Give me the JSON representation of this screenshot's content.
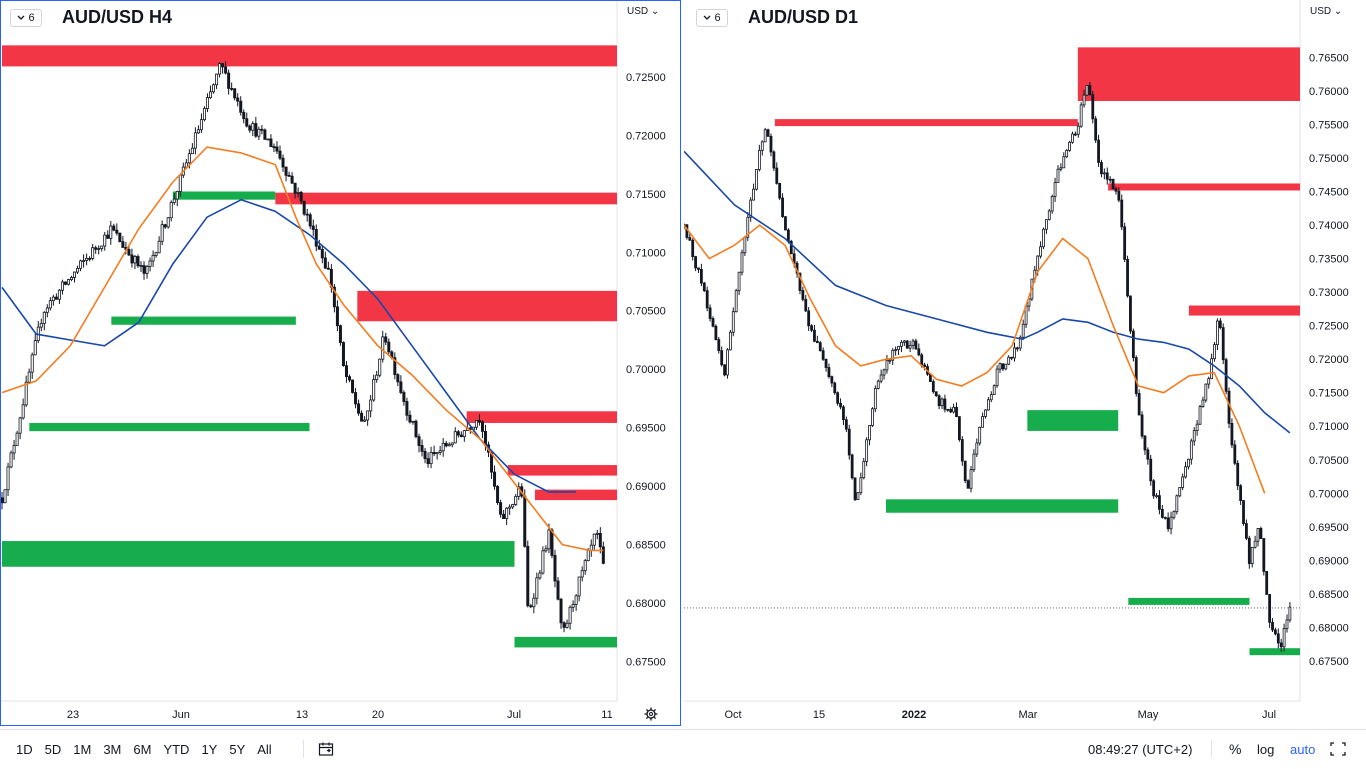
{
  "bottom_bar": {
    "ranges": [
      "1D",
      "5D",
      "1M",
      "3M",
      "6M",
      "YTD",
      "1Y",
      "5Y",
      "All"
    ],
    "clock": "08:49:27 (UTC+2)",
    "percent_label": "%",
    "log_label": "log",
    "auto_label": "auto"
  },
  "colors": {
    "supply_zone": "#f23645",
    "demand_zone": "#17ad4d",
    "ema_fast": "#f57c1f",
    "ema_slow": "#1848a8",
    "active_border": "#2962ff"
  },
  "chart_data": [
    {
      "type": "candlestick",
      "symbol": "AUD/USD H4",
      "interval_label": "6",
      "currency_label": "USD",
      "ylim": [
        0.6735,
        0.7285
      ],
      "y_ticks": [
        "0.72500",
        "0.72000",
        "0.71500",
        "0.71000",
        "0.70500",
        "0.70000",
        "0.69500",
        "0.69000",
        "0.68500",
        "0.68000",
        "0.67500"
      ],
      "x_ticks": [
        "23",
        "Jun",
        "13",
        "20",
        "Jul",
        "11"
      ],
      "price_path": [
        [
          0,
          0.689
        ],
        [
          6,
          0.705
        ],
        [
          16,
          0.712
        ],
        [
          21,
          0.708
        ],
        [
          26,
          0.716
        ],
        [
          32,
          0.726
        ],
        [
          36,
          0.721
        ],
        [
          40,
          0.719
        ],
        [
          44,
          0.714
        ],
        [
          48,
          0.708
        ],
        [
          50,
          0.7
        ],
        [
          53,
          0.695
        ],
        [
          56,
          0.703
        ],
        [
          59,
          0.697
        ],
        [
          62,
          0.692
        ],
        [
          66,
          0.694
        ],
        [
          70,
          0.696
        ],
        [
          73,
          0.687
        ],
        [
          76,
          0.69
        ],
        [
          77,
          0.679
        ],
        [
          80,
          0.686
        ],
        [
          82,
          0.677
        ],
        [
          84,
          0.681
        ],
        [
          87,
          0.686
        ],
        [
          88,
          0.683
        ]
      ],
      "ema_fast": [
        [
          0,
          0.698
        ],
        [
          5,
          0.699
        ],
        [
          10,
          0.702
        ],
        [
          15,
          0.707
        ],
        [
          20,
          0.712
        ],
        [
          25,
          0.716
        ],
        [
          30,
          0.719
        ],
        [
          35,
          0.7185
        ],
        [
          40,
          0.7175
        ],
        [
          43,
          0.713
        ],
        [
          46,
          0.709
        ],
        [
          50,
          0.7055
        ],
        [
          55,
          0.702
        ],
        [
          60,
          0.6995
        ],
        [
          65,
          0.6965
        ],
        [
          70,
          0.694
        ],
        [
          74,
          0.691
        ],
        [
          78,
          0.688
        ],
        [
          82,
          0.685
        ],
        [
          86,
          0.6845
        ],
        [
          88,
          0.6845
        ]
      ],
      "ema_slow": [
        [
          0,
          0.707
        ],
        [
          5,
          0.703
        ],
        [
          10,
          0.7025
        ],
        [
          15,
          0.702
        ],
        [
          20,
          0.704
        ],
        [
          25,
          0.709
        ],
        [
          30,
          0.713
        ],
        [
          35,
          0.7145
        ],
        [
          40,
          0.7135
        ],
        [
          45,
          0.7115
        ],
        [
          50,
          0.709
        ],
        [
          55,
          0.706
        ],
        [
          60,
          0.702
        ],
        [
          65,
          0.698
        ],
        [
          70,
          0.694
        ],
        [
          75,
          0.691
        ],
        [
          80,
          0.6895
        ],
        [
          84,
          0.6895
        ]
      ],
      "zones": [
        {
          "kind": "supply",
          "from": 0,
          "to": 90,
          "high": 0.7277,
          "low": 0.7259
        },
        {
          "kind": "supply",
          "from": 40,
          "to": 90,
          "high": 0.7151,
          "low": 0.7141
        },
        {
          "kind": "supply",
          "from": 52,
          "to": 90,
          "high": 0.7067,
          "low": 0.7041
        },
        {
          "kind": "supply",
          "from": 68,
          "to": 90,
          "high": 0.6964,
          "low": 0.6954
        },
        {
          "kind": "supply",
          "from": 74,
          "to": 90,
          "high": 0.6918,
          "low": 0.6909
        },
        {
          "kind": "supply",
          "from": 78,
          "to": 90,
          "high": 0.6897,
          "low": 0.6888
        },
        {
          "kind": "demand",
          "from": 25,
          "to": 40,
          "high": 0.7152,
          "low": 0.7145
        },
        {
          "kind": "demand",
          "from": 16,
          "to": 43,
          "high": 0.7045,
          "low": 0.7038
        },
        {
          "kind": "demand",
          "from": 4,
          "to": 45,
          "high": 0.6954,
          "low": 0.6947
        },
        {
          "kind": "demand",
          "from": 0,
          "to": 75,
          "high": 0.6853,
          "low": 0.6831
        },
        {
          "kind": "demand",
          "from": 75,
          "to": 90,
          "high": 0.6771,
          "low": 0.6762
        }
      ]
    },
    {
      "type": "candlestick",
      "symbol": "AUD/USD D1",
      "interval_label": "6",
      "currency_label": "USD",
      "ylim": [
        0.6732,
        0.767
      ],
      "y_ticks": [
        "0.76500",
        "0.76000",
        "0.75500",
        "0.75000",
        "0.74500",
        "0.74000",
        "0.73500",
        "0.73000",
        "0.72500",
        "0.72000",
        "0.71500",
        "0.71000",
        "0.70500",
        "0.70000",
        "0.69500",
        "0.69000",
        "0.68500",
        "0.68000",
        "0.67500"
      ],
      "x_ticks": [
        "Oct",
        "15",
        "2022",
        "Mar",
        "May",
        "Jul"
      ],
      "last_price": 0.6829,
      "price_path": [
        [
          0,
          0.74
        ],
        [
          4,
          0.73
        ],
        [
          8,
          0.718
        ],
        [
          12,
          0.738
        ],
        [
          16,
          0.755
        ],
        [
          20,
          0.74
        ],
        [
          24,
          0.727
        ],
        [
          28,
          0.719
        ],
        [
          32,
          0.71
        ],
        [
          34,
          0.698
        ],
        [
          38,
          0.716
        ],
        [
          42,
          0.722
        ],
        [
          46,
          0.722
        ],
        [
          50,
          0.714
        ],
        [
          54,
          0.712
        ],
        [
          56,
          0.7
        ],
        [
          58,
          0.708
        ],
        [
          62,
          0.718
        ],
        [
          66,
          0.722
        ],
        [
          70,
          0.735
        ],
        [
          74,
          0.748
        ],
        [
          78,
          0.755
        ],
        [
          80,
          0.762
        ],
        [
          82,
          0.749
        ],
        [
          86,
          0.745
        ],
        [
          88,
          0.728
        ],
        [
          90,
          0.712
        ],
        [
          93,
          0.7
        ],
        [
          96,
          0.695
        ],
        [
          100,
          0.706
        ],
        [
          104,
          0.718
        ],
        [
          106,
          0.727
        ],
        [
          108,
          0.71
        ],
        [
          110,
          0.7
        ],
        [
          112,
          0.69
        ],
        [
          114,
          0.695
        ],
        [
          116,
          0.68
        ],
        [
          118,
          0.677
        ],
        [
          120,
          0.683
        ]
      ],
      "ema_fast": [
        [
          0,
          0.74
        ],
        [
          5,
          0.735
        ],
        [
          10,
          0.737
        ],
        [
          15,
          0.74
        ],
        [
          20,
          0.737
        ],
        [
          25,
          0.729
        ],
        [
          30,
          0.722
        ],
        [
          35,
          0.719
        ],
        [
          40,
          0.72
        ],
        [
          45,
          0.7205
        ],
        [
          50,
          0.717
        ],
        [
          55,
          0.716
        ],
        [
          60,
          0.718
        ],
        [
          65,
          0.722
        ],
        [
          70,
          0.733
        ],
        [
          75,
          0.738
        ],
        [
          80,
          0.735
        ],
        [
          85,
          0.725
        ],
        [
          90,
          0.716
        ],
        [
          95,
          0.715
        ],
        [
          100,
          0.7175
        ],
        [
          105,
          0.718
        ],
        [
          110,
          0.71
        ],
        [
          115,
          0.7
        ]
      ],
      "ema_slow": [
        [
          0,
          0.751
        ],
        [
          10,
          0.743
        ],
        [
          20,
          0.738
        ],
        [
          30,
          0.731
        ],
        [
          40,
          0.728
        ],
        [
          50,
          0.726
        ],
        [
          60,
          0.724
        ],
        [
          67,
          0.723
        ],
        [
          70,
          0.724
        ],
        [
          75,
          0.726
        ],
        [
          80,
          0.7255
        ],
        [
          85,
          0.724
        ],
        [
          90,
          0.723
        ],
        [
          95,
          0.7225
        ],
        [
          100,
          0.7215
        ],
        [
          105,
          0.719
        ],
        [
          110,
          0.716
        ],
        [
          115,
          0.712
        ],
        [
          120,
          0.709
        ]
      ],
      "zones": [
        {
          "kind": "supply",
          "from": 78,
          "to": 122,
          "high": 0.7665,
          "low": 0.7585
        },
        {
          "kind": "supply",
          "from": 18,
          "to": 78,
          "high": 0.7558,
          "low": 0.7552
        },
        {
          "kind": "supply",
          "from": 84,
          "to": 122,
          "high": 0.7462,
          "low": 0.7453
        },
        {
          "kind": "supply",
          "from": 100,
          "to": 122,
          "high": 0.728,
          "low": 0.7265
        },
        {
          "kind": "demand",
          "from": 68,
          "to": 86,
          "high": 0.7124,
          "low": 0.7093
        },
        {
          "kind": "demand",
          "from": 40,
          "to": 86,
          "high": 0.6991,
          "low": 0.6971
        },
        {
          "kind": "demand",
          "from": 88,
          "to": 112,
          "high": 0.6844,
          "low": 0.6835
        },
        {
          "kind": "demand",
          "from": 112,
          "to": 122,
          "high": 0.6769,
          "low": 0.676
        }
      ]
    }
  ]
}
